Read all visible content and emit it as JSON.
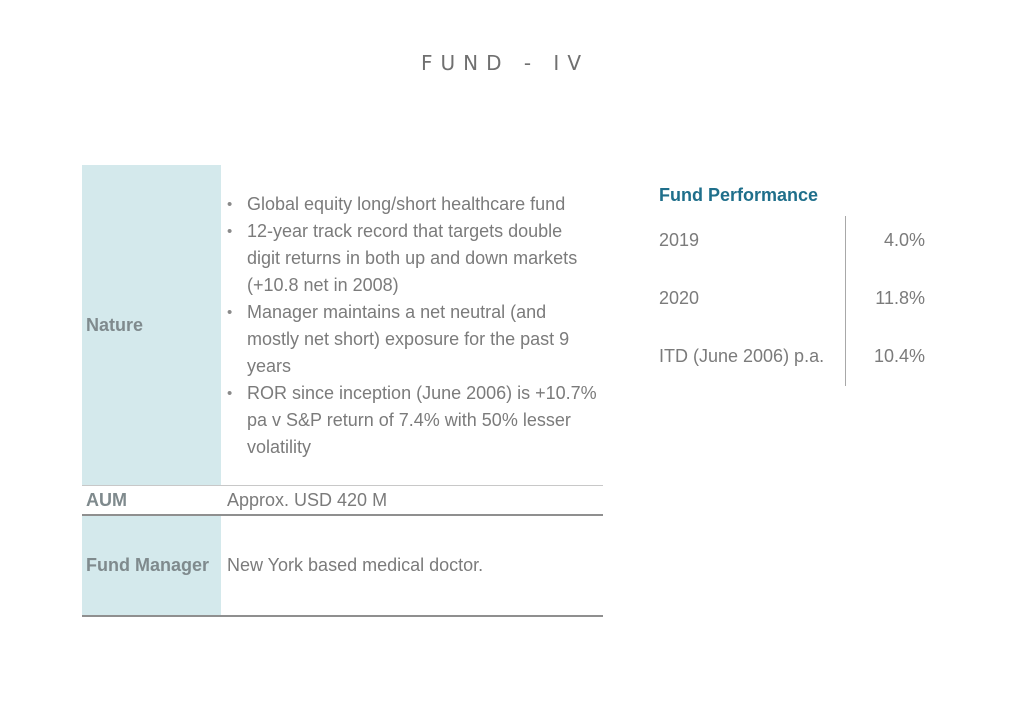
{
  "header": {
    "title": "FUND - IV"
  },
  "info_table": {
    "nature": {
      "label": "Nature",
      "bullets": [
        "Global equity long/short healthcare fund",
        "12-year track record that targets double digit returns in both up and down markets (+10.8 net in 2008)",
        " Manager  maintains a net neutral (and mostly net short) exposure for the past 9 years",
        "ROR since inception (June 2006) is +10.7% pa v S&P return of 7.4% with 50% lesser volatility"
      ]
    },
    "aum": {
      "label": "AUM",
      "value": "Approx. USD 420 M"
    },
    "fund_manager": {
      "label": "Fund Manager",
      "value": "New York based medical doctor."
    }
  },
  "performance": {
    "title": "Fund Performance",
    "rows": [
      {
        "label": "2019",
        "value": "4.0%"
      },
      {
        "label": "2020",
        "value": "11.8%"
      },
      {
        "label": "ITD (June 2006) p.a.",
        "value": "10.4%"
      }
    ]
  },
  "colors": {
    "label_bg": "#d4e9ec",
    "accent": "#1f6f8b",
    "text": "#7b7b7b"
  }
}
